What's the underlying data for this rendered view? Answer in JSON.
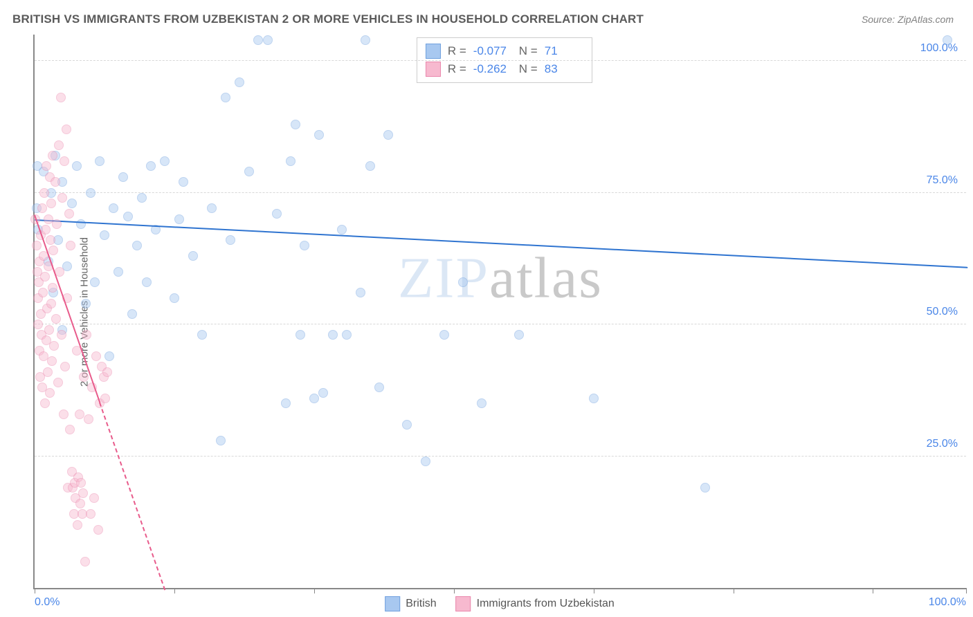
{
  "header": {
    "title": "BRITISH VS IMMIGRANTS FROM UZBEKISTAN 2 OR MORE VEHICLES IN HOUSEHOLD CORRELATION CHART",
    "source": "Source: ZipAtlas.com"
  },
  "chart": {
    "type": "scatter",
    "ylabel": "2 or more Vehicles in Household",
    "xlim": [
      0,
      100
    ],
    "ylim": [
      0,
      105
    ],
    "xtick_positions": [
      0,
      15,
      30,
      45,
      60,
      75,
      90,
      100
    ],
    "xtick_labels": {
      "0": "0.0%",
      "100": "100.0%"
    },
    "ytick_positions": [
      25,
      50,
      75,
      100
    ],
    "ytick_labels": {
      "25": "25.0%",
      "50": "50.0%",
      "75": "75.0%",
      "100": "100.0%"
    },
    "background_color": "#ffffff",
    "grid_color": "#d8d8d8",
    "axis_color": "#888888",
    "tick_label_color": "#4a86e8",
    "marker_radius": 7,
    "marker_opacity": 0.45,
    "series": [
      {
        "name": "British",
        "color_fill": "#a8c8f0",
        "color_stroke": "#6fa0de",
        "trend_color": "#2f74d0",
        "trend_start": [
          0,
          70
        ],
        "trend_end": [
          100,
          61
        ],
        "trend_dashed": false,
        "R": "-0.077",
        "N": "71",
        "points": [
          [
            0.2,
            72
          ],
          [
            0.3,
            80
          ],
          [
            0.4,
            68
          ],
          [
            1,
            79
          ],
          [
            1.5,
            62
          ],
          [
            1.8,
            75
          ],
          [
            2,
            56
          ],
          [
            2.2,
            82
          ],
          [
            2.5,
            66
          ],
          [
            3,
            49
          ],
          [
            3,
            77
          ],
          [
            3.5,
            61
          ],
          [
            4,
            73
          ],
          [
            4.5,
            80
          ],
          [
            5,
            69
          ],
          [
            5.5,
            54
          ],
          [
            6,
            75
          ],
          [
            6.5,
            58
          ],
          [
            7,
            81
          ],
          [
            7.5,
            67
          ],
          [
            8,
            44
          ],
          [
            8.5,
            72
          ],
          [
            9,
            60
          ],
          [
            9.5,
            78
          ],
          [
            10,
            70.5
          ],
          [
            10.5,
            52
          ],
          [
            11,
            65
          ],
          [
            11.5,
            74
          ],
          [
            12,
            58
          ],
          [
            12.5,
            80
          ],
          [
            13,
            68
          ],
          [
            14,
            81
          ],
          [
            15,
            55
          ],
          [
            15.5,
            70
          ],
          [
            16,
            77
          ],
          [
            17,
            63
          ],
          [
            18,
            48
          ],
          [
            19,
            72
          ],
          [
            20,
            28
          ],
          [
            20.5,
            93
          ],
          [
            21,
            66
          ],
          [
            22,
            96
          ],
          [
            23,
            79
          ],
          [
            24,
            104
          ],
          [
            25,
            104
          ],
          [
            26,
            71
          ],
          [
            27,
            35
          ],
          [
            27.5,
            81
          ],
          [
            28,
            88
          ],
          [
            28.5,
            48
          ],
          [
            29,
            65
          ],
          [
            30,
            36
          ],
          [
            30.5,
            86
          ],
          [
            31,
            37
          ],
          [
            32,
            48
          ],
          [
            33,
            68
          ],
          [
            33.5,
            48
          ],
          [
            35,
            56
          ],
          [
            35.5,
            104
          ],
          [
            36,
            80
          ],
          [
            37,
            38
          ],
          [
            38,
            86
          ],
          [
            40,
            31
          ],
          [
            42,
            24
          ],
          [
            44,
            48
          ],
          [
            46,
            58
          ],
          [
            48,
            35
          ],
          [
            52,
            48
          ],
          [
            60,
            36
          ],
          [
            72,
            19
          ],
          [
            98,
            104
          ]
        ]
      },
      {
        "name": "Immigrants from Uzbekistan",
        "color_fill": "#f7b9cf",
        "color_stroke": "#ea87ac",
        "trend_color": "#e85b8b",
        "trend_start": [
          0,
          71
        ],
        "trend_end": [
          14,
          0
        ],
        "trend_dashed": true,
        "trend_solid_until_x": 7,
        "R": "-0.262",
        "N": "83",
        "points": [
          [
            0.1,
            70
          ],
          [
            0.2,
            65
          ],
          [
            0.3,
            60
          ],
          [
            0.35,
            55
          ],
          [
            0.4,
            50
          ],
          [
            0.45,
            58
          ],
          [
            0.5,
            45
          ],
          [
            0.55,
            62
          ],
          [
            0.6,
            40
          ],
          [
            0.65,
            67
          ],
          [
            0.7,
            52
          ],
          [
            0.75,
            48
          ],
          [
            0.8,
            72
          ],
          [
            0.85,
            38
          ],
          [
            0.9,
            56
          ],
          [
            0.95,
            63
          ],
          [
            1,
            44
          ],
          [
            1.05,
            75
          ],
          [
            1.1,
            35
          ],
          [
            1.15,
            59
          ],
          [
            1.2,
            68
          ],
          [
            1.25,
            47
          ],
          [
            1.3,
            80
          ],
          [
            1.35,
            53
          ],
          [
            1.4,
            41
          ],
          [
            1.45,
            70
          ],
          [
            1.5,
            61
          ],
          [
            1.55,
            49
          ],
          [
            1.6,
            78
          ],
          [
            1.65,
            37
          ],
          [
            1.7,
            66
          ],
          [
            1.75,
            54
          ],
          [
            1.8,
            73
          ],
          [
            1.85,
            43
          ],
          [
            1.9,
            82
          ],
          [
            1.95,
            57
          ],
          [
            2,
            64
          ],
          [
            2.1,
            46
          ],
          [
            2.2,
            77
          ],
          [
            2.3,
            51
          ],
          [
            2.4,
            69
          ],
          [
            2.5,
            39
          ],
          [
            2.6,
            84
          ],
          [
            2.7,
            60
          ],
          [
            2.8,
            93
          ],
          [
            2.9,
            48
          ],
          [
            3,
            74
          ],
          [
            3.1,
            33
          ],
          [
            3.2,
            81
          ],
          [
            3.3,
            42
          ],
          [
            3.4,
            87
          ],
          [
            3.5,
            55
          ],
          [
            3.6,
            19
          ],
          [
            3.7,
            71
          ],
          [
            3.8,
            30
          ],
          [
            3.9,
            65
          ],
          [
            4,
            22
          ],
          [
            4.1,
            19
          ],
          [
            4.2,
            14
          ],
          [
            4.3,
            20
          ],
          [
            4.4,
            17
          ],
          [
            4.5,
            45
          ],
          [
            4.6,
            12
          ],
          [
            4.7,
            21
          ],
          [
            4.8,
            33
          ],
          [
            4.9,
            16
          ],
          [
            5,
            20
          ],
          [
            5.1,
            14
          ],
          [
            5.2,
            18
          ],
          [
            5.3,
            40
          ],
          [
            5.4,
            5
          ],
          [
            5.6,
            48
          ],
          [
            5.8,
            32
          ],
          [
            6,
            14
          ],
          [
            6.2,
            38
          ],
          [
            6.4,
            17
          ],
          [
            6.6,
            44
          ],
          [
            6.8,
            11
          ],
          [
            7,
            35
          ],
          [
            7.2,
            42
          ],
          [
            7.4,
            40
          ],
          [
            7.6,
            36
          ],
          [
            7.8,
            41
          ]
        ]
      }
    ],
    "stats_box": {
      "rows": [
        {
          "swatch_fill": "#a8c8f0",
          "swatch_stroke": "#6fa0de",
          "R_label": "R =",
          "R_val": "-0.077",
          "N_label": "N =",
          "N_val": "71"
        },
        {
          "swatch_fill": "#f7b9cf",
          "swatch_stroke": "#ea87ac",
          "R_label": "R =",
          "R_val": "-0.262",
          "N_label": "N =",
          "N_val": "83"
        }
      ]
    },
    "bottom_legend": [
      {
        "swatch_fill": "#a8c8f0",
        "swatch_stroke": "#6fa0de",
        "label": "British"
      },
      {
        "swatch_fill": "#f7b9cf",
        "swatch_stroke": "#ea87ac",
        "label": "Immigrants from Uzbekistan"
      }
    ],
    "watermark": {
      "text_light": "ZIP",
      "text_dark": "atlas",
      "color_light": "#dbe7f5",
      "color_dark": "#c9c9c9"
    }
  }
}
